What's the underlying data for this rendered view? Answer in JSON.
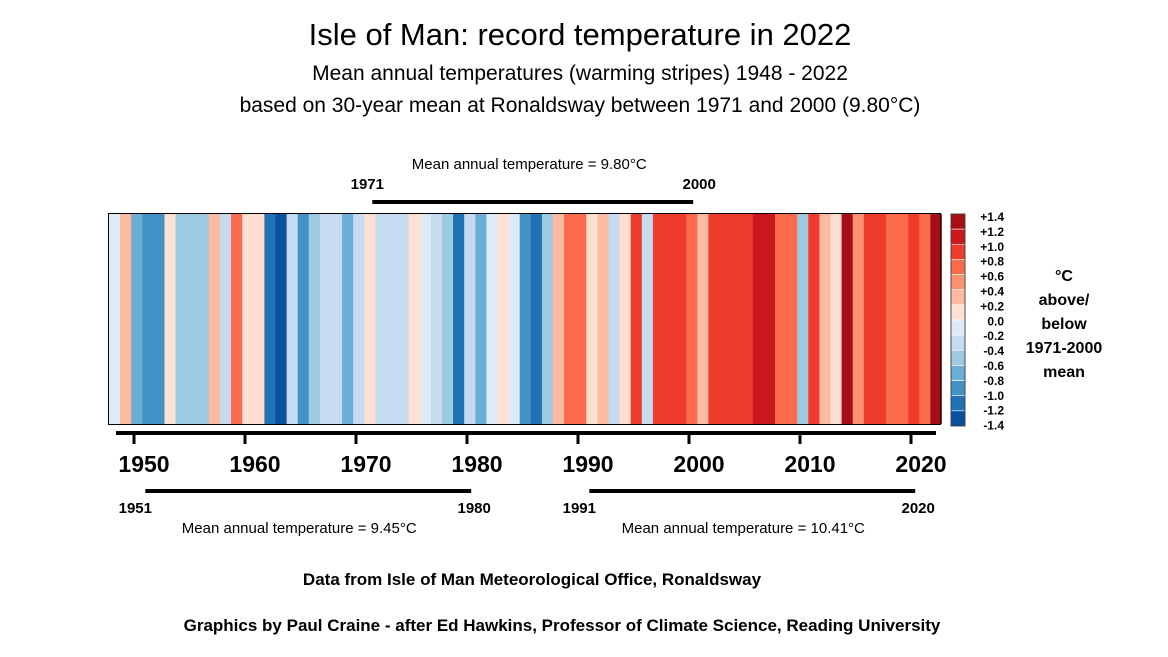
{
  "chart_data": {
    "type": "heatmap",
    "title": "Isle of Man: record temperature in 2022",
    "subtitle_1": "Mean annual temperatures (warming stripes) 1948 - 2022",
    "subtitle_2": "based on 30-year mean at Ronaldsway between 1971 and 2000 (9.80°C)",
    "years": [
      1948,
      1949,
      1950,
      1951,
      1952,
      1953,
      1954,
      1955,
      1956,
      1957,
      1958,
      1959,
      1960,
      1961,
      1962,
      1963,
      1964,
      1965,
      1966,
      1967,
      1968,
      1969,
      1970,
      1971,
      1972,
      1973,
      1974,
      1975,
      1976,
      1977,
      1978,
      1979,
      1980,
      1981,
      1982,
      1983,
      1984,
      1985,
      1986,
      1987,
      1988,
      1989,
      1990,
      1991,
      1992,
      1993,
      1994,
      1995,
      1996,
      1997,
      1998,
      1999,
      2000,
      2001,
      2002,
      2003,
      2004,
      2005,
      2006,
      2007,
      2008,
      2009,
      2010,
      2011,
      2012,
      2013,
      2014,
      2015,
      2016,
      2017,
      2018,
      2019,
      2020,
      2021,
      2022
    ],
    "anomalies": [
      -0.1,
      0.3,
      -0.7,
      -0.9,
      -0.9,
      0.1,
      -0.5,
      -0.5,
      -0.5,
      0.3,
      -0.3,
      0.7,
      0.1,
      0.1,
      -1.1,
      -1.3,
      -0.3,
      -0.9,
      -0.5,
      -0.3,
      -0.3,
      -0.7,
      -0.3,
      0.1,
      -0.3,
      -0.3,
      -0.3,
      0.1,
      -0.1,
      -0.3,
      -0.5,
      -1.1,
      -0.3,
      -0.7,
      -0.1,
      0.1,
      -0.1,
      -0.9,
      -1.1,
      -0.5,
      0.3,
      0.7,
      0.7,
      0.1,
      0.3,
      -0.3,
      0.1,
      0.9,
      -0.3,
      0.9,
      0.9,
      0.9,
      0.7,
      0.3,
      0.9,
      0.9,
      0.9,
      0.9,
      1.1,
      1.1,
      0.7,
      0.7,
      -0.5,
      0.9,
      0.3,
      0.1,
      1.3,
      0.5,
      0.9,
      0.9,
      0.7,
      0.7,
      0.9,
      0.7,
      1.3
    ],
    "value_unit": "°C above/below 1971-2000 mean",
    "x_ticks": [
      "1950",
      "1960",
      "1970",
      "1980",
      "1990",
      "2000",
      "2010",
      "2020"
    ],
    "x_tick_values": [
      1950,
      1960,
      1970,
      1980,
      1990,
      2000,
      2010,
      2020
    ],
    "color_scale": {
      "labels": [
        "+1.4",
        "+1.2",
        "+1.0",
        "+0.8",
        "+0.6",
        "+0.4",
        "+0.2",
        "0.0",
        "-0.2",
        "-0.4",
        "-0.6",
        "-0.8",
        "-1.0",
        "-1.2",
        "-1.4"
      ],
      "colors": [
        "#a50f15",
        "#cb181d",
        "#ef3b2c",
        "#fb6a4a",
        "#fc9272",
        "#fcbba1",
        "#fee0d2",
        "#deebf7",
        "#c6dbef",
        "#9ecae1",
        "#6baed6",
        "#4292c6",
        "#2171b5",
        "#08519c"
      ],
      "range": [
        -1.4,
        1.4
      ],
      "title_lines": [
        "°C",
        "above/",
        "below",
        "1971-2000",
        "mean"
      ]
    },
    "periods": [
      {
        "start": 1971,
        "end": 2000,
        "start_label": "1971",
        "end_label": "2000",
        "label": "Mean annual temperature = 9.80°C",
        "position": "above"
      },
      {
        "start": 1951,
        "end": 1980,
        "start_label": "1951",
        "end_label": "1980",
        "label": "Mean annual temperature = 9.45°C",
        "position": "below"
      },
      {
        "start": 1991,
        "end": 2020,
        "start_label": "1991",
        "end_label": "2020",
        "label": "Mean annual temperature = 10.41°C",
        "position": "below"
      }
    ],
    "footer_1": "Data from Isle of Man Meteorological Office, Ronaldsway",
    "footer_2": "Graphics by Paul Craine  - after Ed Hawkins, Professor of Climate Science, Reading University"
  }
}
